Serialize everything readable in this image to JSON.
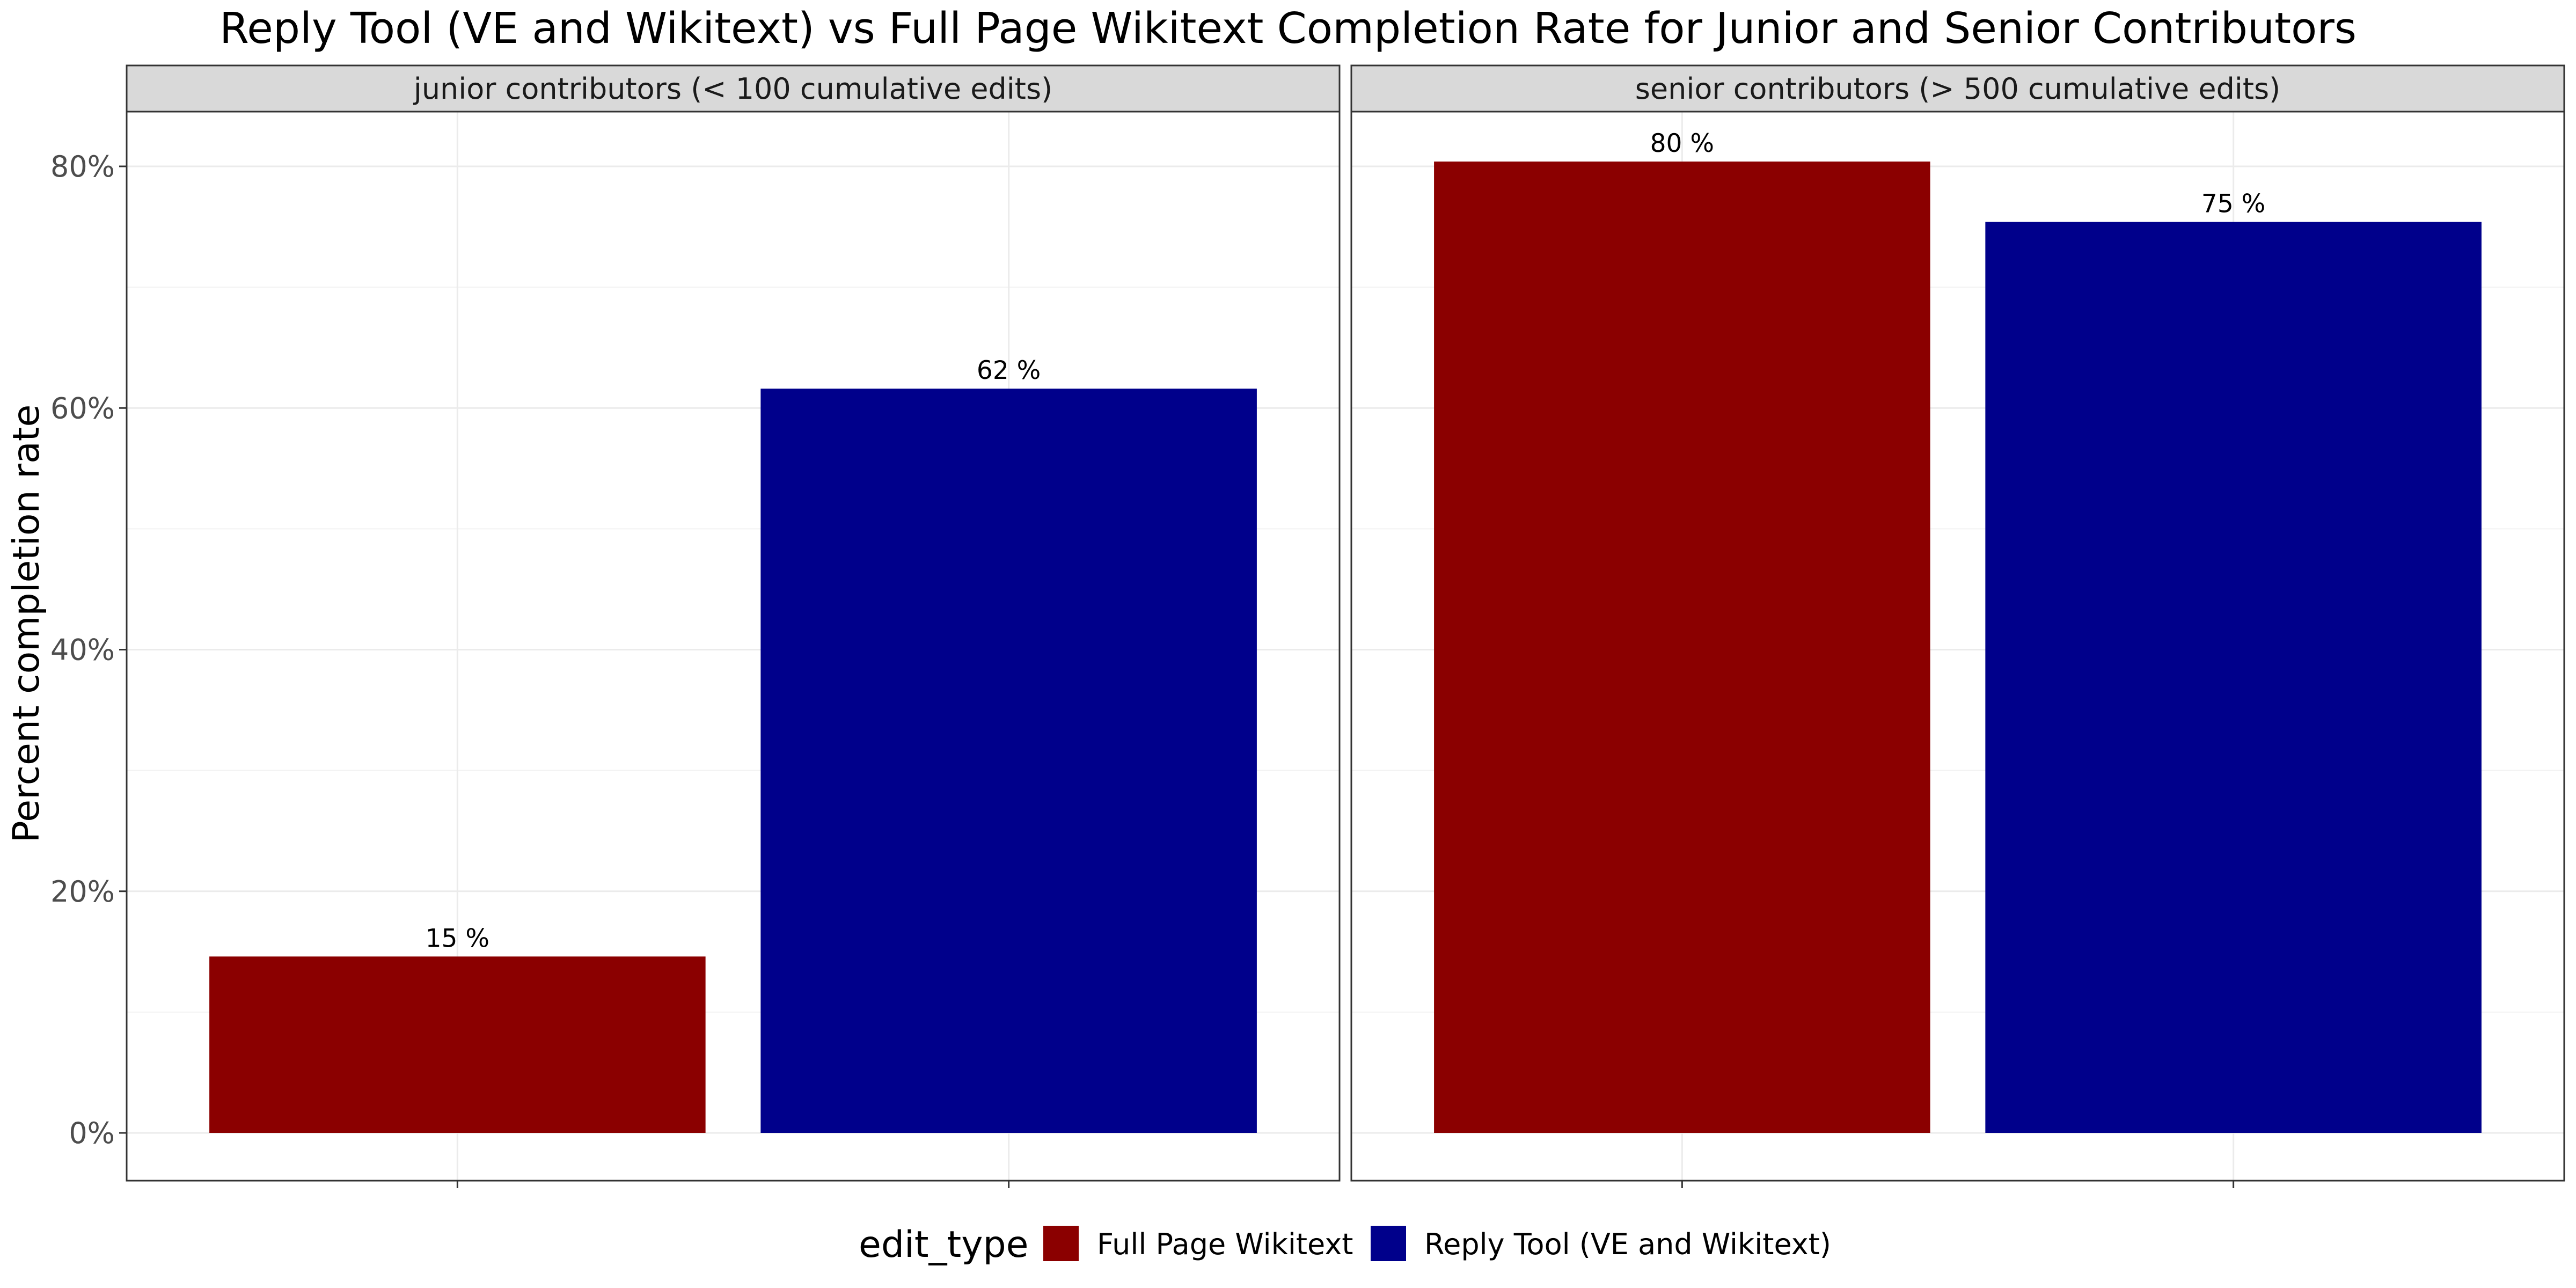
{
  "chart_data": {
    "type": "bar",
    "title": "Reply Tool (VE and Wikitext) vs Full Page Wikitext Completion Rate for Junior and Senior Contributors",
    "ylabel": "Percent completion rate",
    "xlabel": "",
    "ylim": [
      0,
      0.85
    ],
    "y_ticks": [
      {
        "value": 0,
        "label": "0%"
      },
      {
        "value": 0.2,
        "label": "20%"
      },
      {
        "value": 0.4,
        "label": "40%"
      },
      {
        "value": 0.6,
        "label": "60%"
      },
      {
        "value": 0.8,
        "label": "80%"
      }
    ],
    "grid": true,
    "legend": {
      "title": "edit_type",
      "position": "bottom",
      "entries": [
        {
          "name": "Full Page Wikitext",
          "color": "#8b0000"
        },
        {
          "name": "Reply Tool (VE and Wikitext)",
          "color": "#00008b"
        }
      ]
    },
    "panels": [
      {
        "strip": "junior contributors (< 100 cumulative edits)",
        "bars": [
          {
            "series": "Full Page Wikitext",
            "value": 0.146,
            "label": "15 %"
          },
          {
            "series": "Reply Tool (VE and Wikitext)",
            "value": 0.616,
            "label": "62 %"
          }
        ]
      },
      {
        "strip": "senior contributors (> 500 cumulative edits)",
        "bars": [
          {
            "series": "Full Page Wikitext",
            "value": 0.804,
            "label": "80 %"
          },
          {
            "series": "Reply Tool (VE and Wikitext)",
            "value": 0.754,
            "label": "75 %"
          }
        ]
      }
    ]
  }
}
